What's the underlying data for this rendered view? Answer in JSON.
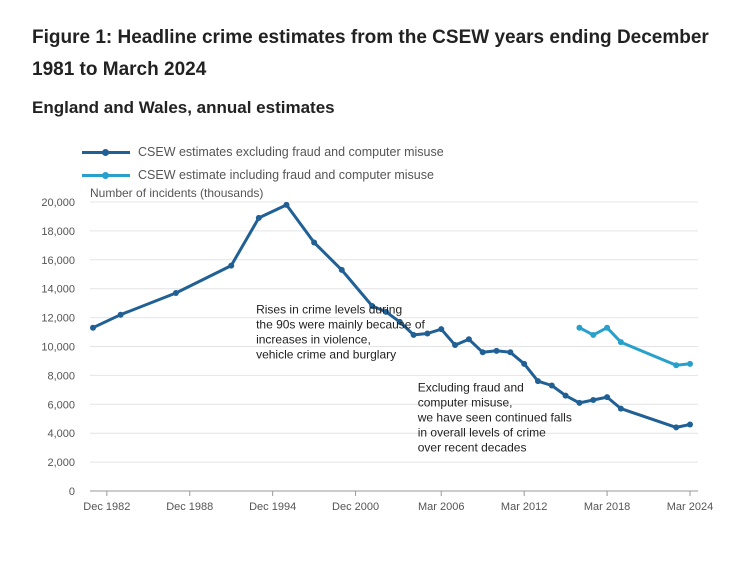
{
  "title": "Figure 1: Headline crime estimates from the CSEW years ending December 1981 to March 2024",
  "subtitle": "England and Wales, annual estimates",
  "legend": [
    {
      "label": "CSEW estimates excluding fraud and computer misuse",
      "color": "#206095"
    },
    {
      "label": "CSEW estimate including fraud and computer misuse",
      "color": "#27a0cc"
    }
  ],
  "chart_data": {
    "type": "line",
    "ylabel": "Number of incidents (thousands)",
    "ylim": [
      0,
      20000
    ],
    "yticks": [
      0,
      2000,
      4000,
      6000,
      8000,
      10000,
      12000,
      14000,
      16000,
      18000,
      20000
    ],
    "ytick_labels": [
      "0",
      "2,000",
      "4,000",
      "6,000",
      "8,000",
      "10,000",
      "12,000",
      "14,000",
      "16,000",
      "18,000",
      "20,000"
    ],
    "xlim": [
      1981,
      2024.2
    ],
    "xticks": [
      1982,
      1988,
      1994,
      2000,
      2006.2,
      2012.2,
      2018.2,
      2024.2
    ],
    "xtick_labels": [
      "Dec 1982",
      "Dec 1988",
      "Dec 1994",
      "Dec 2000",
      "Mar 2006",
      "Mar 2012",
      "Mar 2018",
      "Mar 2024"
    ],
    "grid": true,
    "series": [
      {
        "name": "CSEW estimates excluding fraud and computer misuse",
        "color": "#206095",
        "points": [
          [
            1981,
            11300
          ],
          [
            1983,
            12200
          ],
          [
            1987,
            13700
          ],
          [
            1991,
            15600
          ],
          [
            1993,
            18900
          ],
          [
            1995,
            19800
          ],
          [
            1997,
            17200
          ],
          [
            1999,
            15300
          ],
          [
            2001.2,
            12800
          ],
          [
            2002.2,
            12400
          ],
          [
            2003.2,
            11700
          ],
          [
            2004.2,
            10800
          ],
          [
            2005.2,
            10900
          ],
          [
            2006.2,
            11200
          ],
          [
            2007.2,
            10100
          ],
          [
            2008.2,
            10500
          ],
          [
            2009.2,
            9600
          ],
          [
            2010.2,
            9700
          ],
          [
            2011.2,
            9600
          ],
          [
            2012.2,
            8800
          ],
          [
            2013.2,
            7600
          ],
          [
            2014.2,
            7300
          ],
          [
            2015.2,
            6600
          ],
          [
            2016.2,
            6100
          ],
          [
            2017.2,
            6300
          ],
          [
            2018.2,
            6500
          ],
          [
            2019.2,
            5700
          ],
          [
            2023.2,
            4400
          ],
          [
            2024.2,
            4600
          ]
        ]
      },
      {
        "name": "CSEW estimate including fraud and computer misuse",
        "color": "#27a0cc",
        "points": [
          [
            2016.2,
            11300
          ],
          [
            2017.2,
            10800
          ],
          [
            2018.2,
            11300
          ],
          [
            2019.2,
            10300
          ],
          [
            2023.2,
            8700
          ],
          [
            2024.2,
            8800
          ]
        ]
      }
    ],
    "annotations": [
      {
        "lines": [
          "Rises in crime levels during",
          "the 90s were mainly because of",
          "increases in violence,",
          "vehicle crime and burglary"
        ],
        "x": 1992.8,
        "y": 12300
      },
      {
        "lines": [
          "Excluding fraud and",
          "computer misuse,",
          "we have seen continued falls",
          "in overall levels of crime",
          "over recent decades"
        ],
        "x": 2004.5,
        "y": 6900
      }
    ]
  }
}
